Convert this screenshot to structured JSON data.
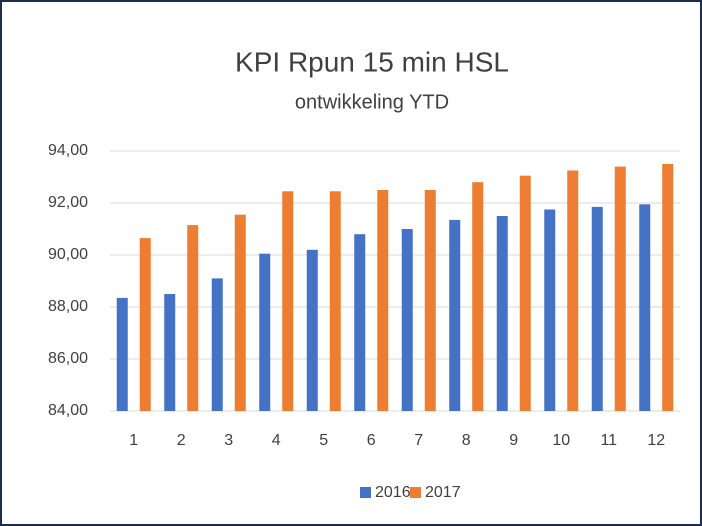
{
  "chart_data": {
    "type": "bar",
    "title": "KPI Rpun 15 min HSL",
    "subtitle": "ontwikkeling YTD",
    "categories": [
      "1",
      "2",
      "3",
      "4",
      "5",
      "6",
      "7",
      "8",
      "9",
      "10",
      "11",
      "12"
    ],
    "series": [
      {
        "name": "2016",
        "color": "#4472c4",
        "values": [
          88.35,
          88.5,
          89.1,
          90.05,
          90.2,
          90.8,
          91.0,
          91.35,
          91.5,
          91.75,
          91.85,
          91.95
        ]
      },
      {
        "name": "2017",
        "color": "#ed7d31",
        "values": [
          90.65,
          91.15,
          91.55,
          92.45,
          92.45,
          92.5,
          92.5,
          92.8,
          93.05,
          93.25,
          93.4,
          93.5
        ]
      }
    ],
    "ylim": [
      84,
      94
    ],
    "yticks": [
      {
        "value": 84,
        "label": "84,00"
      },
      {
        "value": 86,
        "label": "86,00"
      },
      {
        "value": 88,
        "label": "88,00"
      },
      {
        "value": 90,
        "label": "90,00"
      },
      {
        "value": 92,
        "label": "92,00"
      },
      {
        "value": 94,
        "label": "94,00"
      }
    ],
    "grid": true,
    "legend": "bottom"
  }
}
